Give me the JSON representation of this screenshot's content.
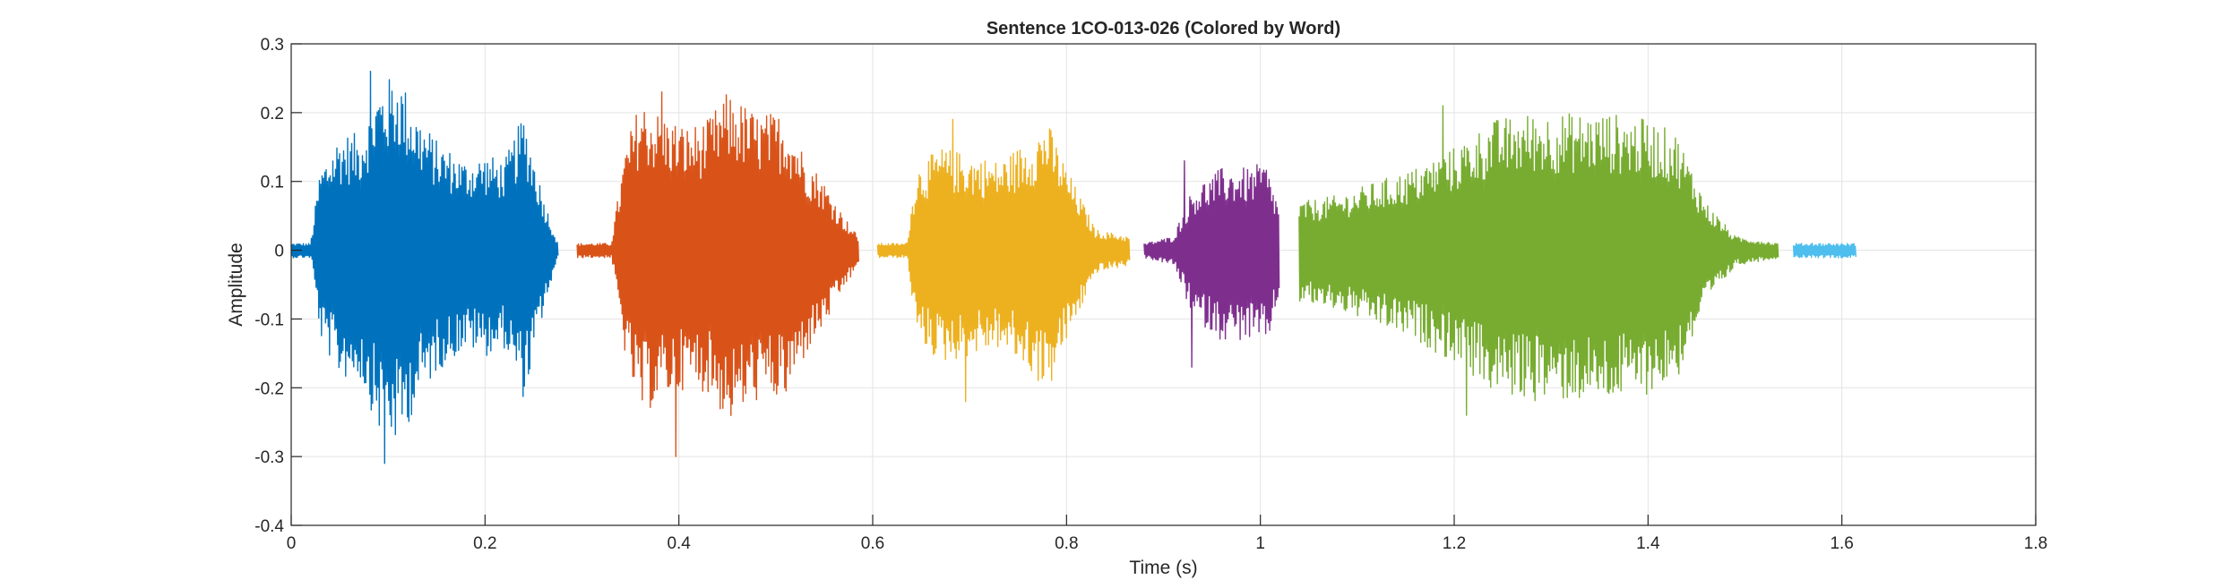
{
  "chart_data": {
    "type": "line",
    "title": "Sentence 1CO-013-026 (Colored by Word)",
    "xlabel": "Time (s)",
    "ylabel": "Amplitude",
    "xlim": [
      0,
      1.8
    ],
    "ylim": [
      -0.4,
      0.3
    ],
    "xticks": [
      0,
      0.2,
      0.4,
      0.6,
      0.8,
      1,
      1.2,
      1.4,
      1.6,
      1.8
    ],
    "xtick_labels": [
      "0",
      "0.2",
      "0.4",
      "0.6",
      "0.8",
      "1",
      "1.2",
      "1.4",
      "1.6",
      "1.8"
    ],
    "yticks": [
      -0.4,
      -0.3,
      -0.2,
      -0.1,
      0,
      0.1,
      0.2,
      0.3
    ],
    "ytick_labels": [
      "-0.4",
      "-0.3",
      "-0.2",
      "-0.1",
      "0",
      "0.1",
      "0.2",
      "0.3"
    ],
    "grid": true,
    "legend": "none",
    "series": [
      {
        "color": "#0072BD",
        "x_range": [
          0.0,
          0.275
        ],
        "envelope": [
          [
            0.0,
            0.01
          ],
          [
            0.02,
            0.01
          ],
          [
            0.03,
            0.12
          ],
          [
            0.05,
            0.17
          ],
          [
            0.07,
            0.17
          ],
          [
            0.09,
            0.24
          ],
          [
            0.11,
            0.26
          ],
          [
            0.13,
            0.2
          ],
          [
            0.15,
            0.16
          ],
          [
            0.18,
            0.13
          ],
          [
            0.2,
            0.14
          ],
          [
            0.22,
            0.13
          ],
          [
            0.24,
            0.2
          ],
          [
            0.26,
            0.08
          ],
          [
            0.275,
            0.01
          ]
        ],
        "peak_max": 0.26,
        "peak_min": -0.31
      },
      {
        "color": "#D95319",
        "x_range": [
          0.295,
          0.585
        ],
        "envelope": [
          [
            0.295,
            0.01
          ],
          [
            0.33,
            0.01
          ],
          [
            0.345,
            0.15
          ],
          [
            0.36,
            0.22
          ],
          [
            0.38,
            0.2
          ],
          [
            0.41,
            0.18
          ],
          [
            0.43,
            0.19
          ],
          [
            0.45,
            0.23
          ],
          [
            0.48,
            0.2
          ],
          [
            0.51,
            0.2
          ],
          [
            0.53,
            0.14
          ],
          [
            0.55,
            0.1
          ],
          [
            0.57,
            0.05
          ],
          [
            0.585,
            0.02
          ]
        ],
        "peak_max": 0.23,
        "peak_min": -0.3
      },
      {
        "color": "#EDB120",
        "x_range": [
          0.605,
          0.865
        ],
        "envelope": [
          [
            0.605,
            0.01
          ],
          [
            0.635,
            0.01
          ],
          [
            0.645,
            0.12
          ],
          [
            0.67,
            0.15
          ],
          [
            0.7,
            0.14
          ],
          [
            0.73,
            0.13
          ],
          [
            0.76,
            0.16
          ],
          [
            0.78,
            0.19
          ],
          [
            0.8,
            0.12
          ],
          [
            0.83,
            0.03
          ],
          [
            0.865,
            0.02
          ]
        ],
        "peak_max": 0.19,
        "peak_min": -0.22
      },
      {
        "color": "#7E2F8E",
        "x_range": [
          0.88,
          1.02
        ],
        "envelope": [
          [
            0.88,
            0.01
          ],
          [
            0.91,
            0.02
          ],
          [
            0.93,
            0.09
          ],
          [
            0.96,
            0.12
          ],
          [
            0.99,
            0.12
          ],
          [
            1.005,
            0.13
          ],
          [
            1.02,
            0.06
          ]
        ],
        "peak_max": 0.13,
        "peak_min": -0.17
      },
      {
        "color": "#77AC30",
        "x_range": [
          1.04,
          1.535
        ],
        "envelope": [
          [
            1.04,
            0.07
          ],
          [
            1.08,
            0.08
          ],
          [
            1.12,
            0.1
          ],
          [
            1.16,
            0.12
          ],
          [
            1.2,
            0.15
          ],
          [
            1.24,
            0.19
          ],
          [
            1.28,
            0.2
          ],
          [
            1.32,
            0.2
          ],
          [
            1.36,
            0.2
          ],
          [
            1.4,
            0.19
          ],
          [
            1.43,
            0.17
          ],
          [
            1.46,
            0.07
          ],
          [
            1.49,
            0.02
          ],
          [
            1.535,
            0.01
          ]
        ],
        "peak_max": 0.21,
        "peak_min": -0.24
      },
      {
        "color": "#4DBEEE",
        "x_range": [
          1.55,
          1.615
        ],
        "envelope": [
          [
            1.55,
            0.01
          ],
          [
            1.58,
            0.01
          ],
          [
            1.615,
            0.01
          ]
        ],
        "peak_max": 0.01,
        "peak_min": -0.01
      }
    ]
  }
}
